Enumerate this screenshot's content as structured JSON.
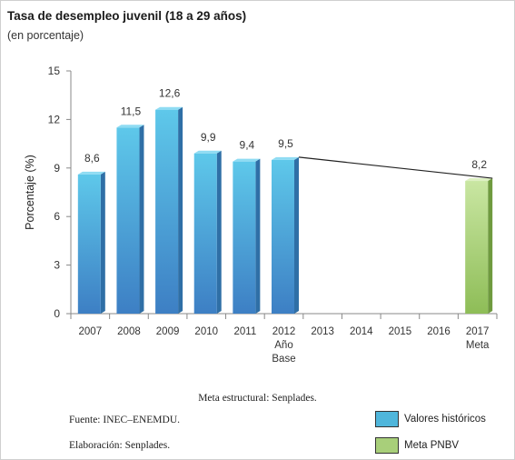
{
  "title": "Tasa de desempleo juvenil (18 a 29 años)",
  "subtitle": "(en porcentaje)",
  "caption": "Meta estructural: Senplades.",
  "source": "Fuente: INEC–ENEMDU.",
  "elaboration": "Elaboración: Senplades.",
  "legend": [
    {
      "label": "Valores históricos",
      "color": "#4fb6db"
    },
    {
      "label": "Meta PNBV",
      "color": "#a8cf7a"
    }
  ],
  "chart_data": {
    "type": "bar",
    "categories": [
      "2007",
      "2008",
      "2009",
      "2010",
      "2011",
      "2012",
      "2013",
      "2014",
      "2015",
      "2016",
      "2017"
    ],
    "category_sublabels": {
      "2012": [
        "Año",
        "Base"
      ],
      "2017": [
        "Meta"
      ]
    },
    "series": [
      {
        "name": "Valores históricos",
        "values": [
          8.6,
          11.5,
          12.6,
          9.9,
          9.4,
          9.5,
          null,
          null,
          null,
          null,
          null
        ],
        "color": "#4fb6db"
      },
      {
        "name": "Meta PNBV",
        "values": [
          null,
          null,
          null,
          null,
          null,
          null,
          null,
          null,
          null,
          null,
          8.2
        ],
        "color": "#a8cf7a"
      }
    ],
    "data_labels": [
      "8,6",
      "11,5",
      "12,6",
      "9,9",
      "9,4",
      "9,5",
      "",
      "",
      "",
      "",
      "8,2"
    ],
    "trend_line": {
      "from": {
        "x": "2012",
        "y": 9.5
      },
      "to": {
        "x": "2017",
        "y": 8.2
      }
    },
    "ylabel": "Porcentaje (%)",
    "xlabel": "",
    "ylim": [
      0,
      15
    ],
    "yticks": [
      0,
      3,
      6,
      9,
      12,
      15
    ],
    "grid": false
  }
}
